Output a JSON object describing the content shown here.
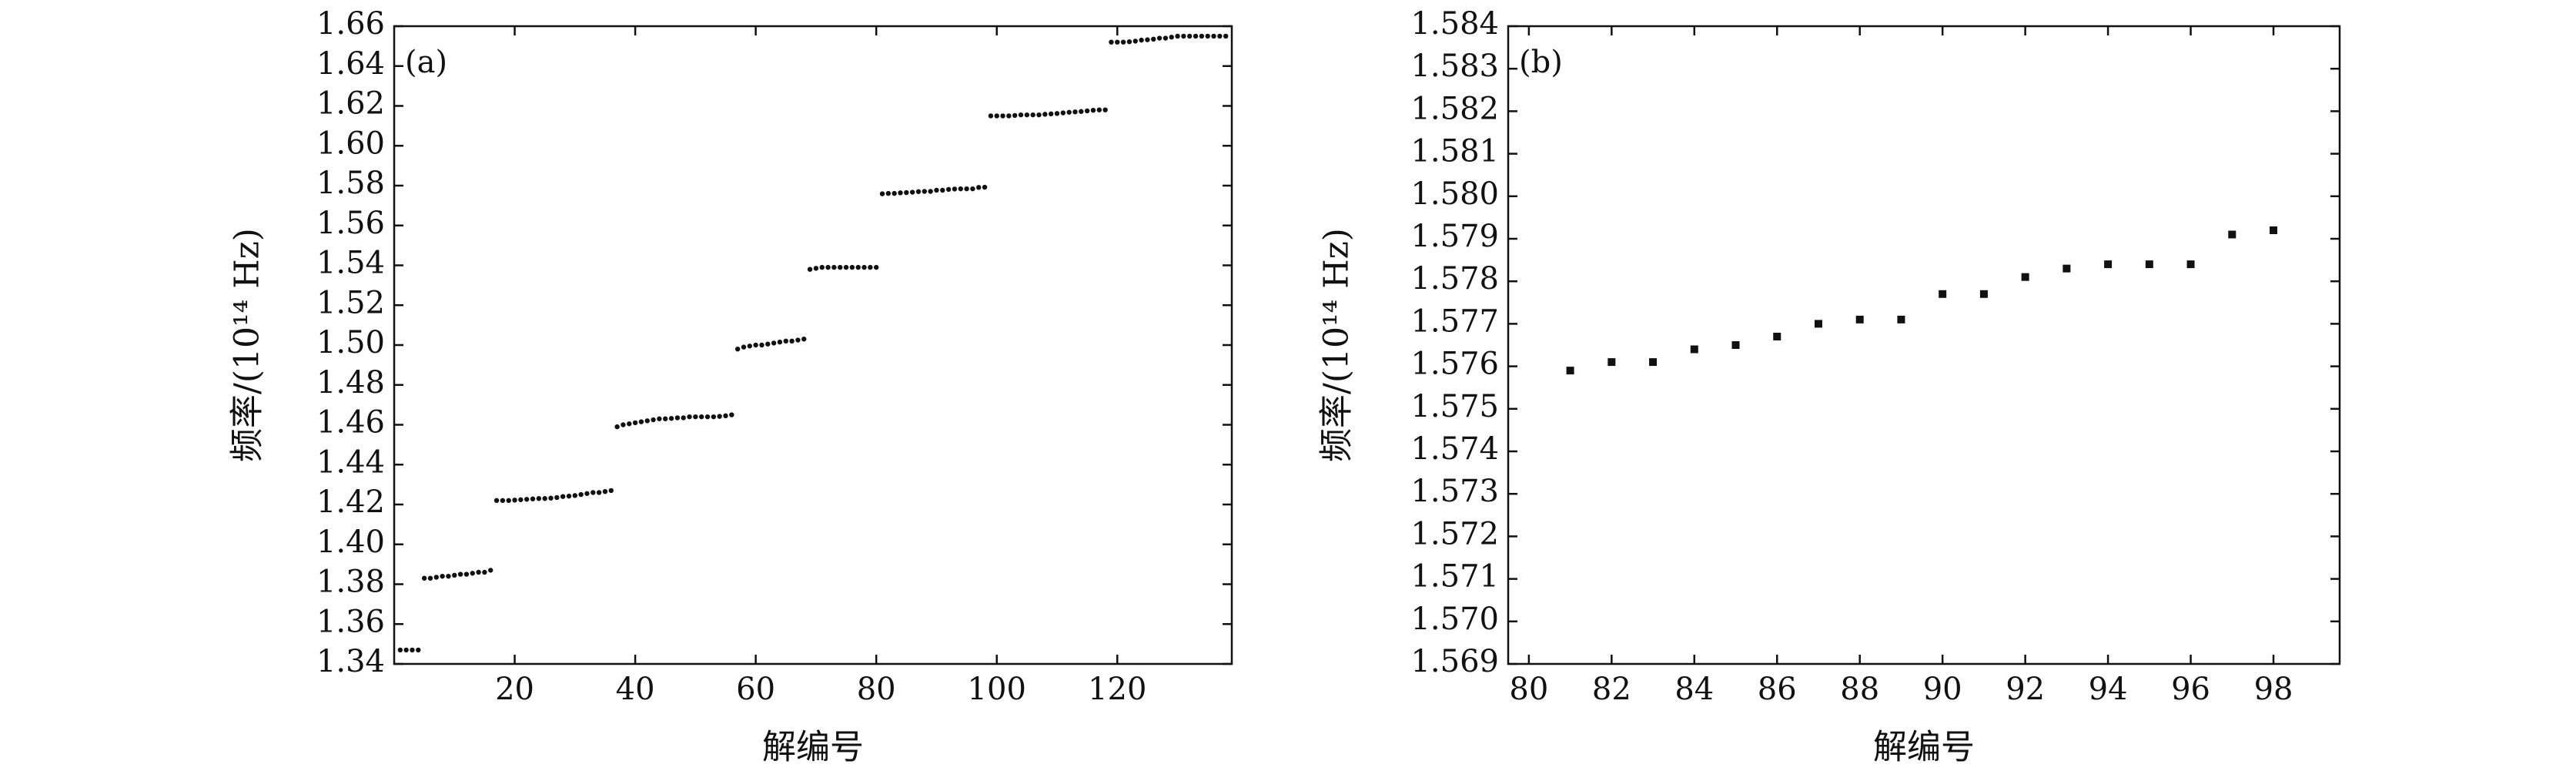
{
  "chart_data": [
    {
      "type": "scatter",
      "annotation": "(a)",
      "xlabel": "解编号",
      "ylabel": "频率/(10¹⁴ Hz)",
      "color": "#111111",
      "marker": "circle",
      "xlim": [
        0,
        139
      ],
      "xticks": [
        20,
        40,
        60,
        80,
        100,
        120
      ],
      "ylim": [
        1.34,
        1.66
      ],
      "yticks": [
        {
          "value": 1.34,
          "label": "1.34"
        },
        {
          "value": 1.36,
          "label": "1.36"
        },
        {
          "value": 1.38,
          "label": "1.38"
        },
        {
          "value": 1.4,
          "label": "1.40"
        },
        {
          "value": 1.42,
          "label": "1.42"
        },
        {
          "value": 1.44,
          "label": "1.44"
        },
        {
          "value": 1.46,
          "label": "1.46"
        },
        {
          "value": 1.48,
          "label": "1.48"
        },
        {
          "value": 1.5,
          "label": "1.50"
        },
        {
          "value": 1.52,
          "label": "1.52"
        },
        {
          "value": 1.54,
          "label": "1.54"
        },
        {
          "value": 1.56,
          "label": "1.56"
        },
        {
          "value": 1.58,
          "label": "1.58"
        },
        {
          "value": 1.6,
          "label": "1.60"
        },
        {
          "value": 1.62,
          "label": "1.62"
        },
        {
          "value": 1.64,
          "label": "1.64"
        },
        {
          "value": 1.66,
          "label": "1.66"
        }
      ],
      "x": [
        1,
        2,
        3,
        4,
        5,
        6,
        7,
        8,
        9,
        10,
        11,
        12,
        13,
        14,
        15,
        16,
        17,
        18,
        19,
        20,
        21,
        22,
        23,
        24,
        25,
        26,
        27,
        28,
        29,
        30,
        31,
        32,
        33,
        34,
        35,
        36,
        37,
        38,
        39,
        40,
        41,
        42,
        43,
        44,
        45,
        46,
        47,
        48,
        49,
        50,
        51,
        52,
        53,
        54,
        55,
        56,
        57,
        58,
        59,
        60,
        61,
        62,
        63,
        64,
        65,
        66,
        67,
        68,
        69,
        70,
        71,
        72,
        73,
        74,
        75,
        76,
        77,
        78,
        79,
        80,
        81,
        82,
        83,
        84,
        85,
        86,
        87,
        88,
        89,
        90,
        91,
        92,
        93,
        94,
        95,
        96,
        97,
        98,
        99,
        100,
        101,
        102,
        103,
        104,
        105,
        106,
        107,
        108,
        109,
        110,
        111,
        112,
        113,
        114,
        115,
        116,
        117,
        118,
        119,
        120,
        121,
        122,
        123,
        124,
        125,
        126,
        127,
        128,
        129,
        130,
        131,
        132,
        133,
        134,
        135,
        136,
        137,
        138
      ],
      "values": [
        1.347,
        1.347,
        1.347,
        1.347,
        1.383,
        1.383,
        1.3835,
        1.384,
        1.384,
        1.3845,
        1.385,
        1.385,
        1.3855,
        1.386,
        1.386,
        1.387,
        1.422,
        1.422,
        1.422,
        1.4222,
        1.4224,
        1.4226,
        1.4228,
        1.423,
        1.423,
        1.4232,
        1.4235,
        1.424,
        1.4242,
        1.4245,
        1.425,
        1.4255,
        1.426,
        1.426,
        1.4265,
        1.427,
        1.459,
        1.46,
        1.4605,
        1.461,
        1.4615,
        1.462,
        1.4625,
        1.463,
        1.463,
        1.4632,
        1.4635,
        1.4635,
        1.464,
        1.464,
        1.464,
        1.464,
        1.464,
        1.4642,
        1.4645,
        1.465,
        1.498,
        1.499,
        1.4995,
        1.5,
        1.5,
        1.5005,
        1.501,
        1.5015,
        1.502,
        1.502,
        1.5025,
        1.503,
        1.538,
        1.5385,
        1.539,
        1.539,
        1.539,
        1.539,
        1.539,
        1.539,
        1.539,
        1.539,
        1.539,
        1.539,
        1.5759,
        1.5761,
        1.5761,
        1.5764,
        1.5765,
        1.5767,
        1.577,
        1.5771,
        1.5771,
        1.5777,
        1.5777,
        1.5781,
        1.5783,
        1.5784,
        1.5784,
        1.5784,
        1.5791,
        1.5792,
        1.615,
        1.615,
        1.615,
        1.615,
        1.6152,
        1.6155,
        1.6155,
        1.6155,
        1.6155,
        1.6158,
        1.616,
        1.6162,
        1.6165,
        1.6168,
        1.617,
        1.6172,
        1.6175,
        1.6178,
        1.618,
        1.618,
        1.652,
        1.652,
        1.652,
        1.6522,
        1.6525,
        1.653,
        1.6532,
        1.6535,
        1.654,
        1.654,
        1.6545,
        1.655,
        1.655,
        1.655,
        1.655,
        1.655,
        1.655,
        1.655,
        1.655,
        1.655
      ]
    },
    {
      "type": "scatter",
      "annotation": "(b)",
      "xlabel": "解编号",
      "ylabel": "频率/(10¹⁴ Hz)",
      "color": "#111111",
      "marker": "square",
      "xlim": [
        79.5,
        99.6
      ],
      "xticks": [
        80,
        82,
        84,
        86,
        88,
        90,
        92,
        94,
        96,
        98
      ],
      "ylim": [
        1.569,
        1.584
      ],
      "yticks": [
        1.569,
        {
          "value": 1.57,
          "label": "1.570"
        },
        1.571,
        1.572,
        1.573,
        1.574,
        1.575,
        1.576,
        1.577,
        1.578,
        1.579,
        {
          "value": 1.58,
          "label": "1.580"
        },
        1.581,
        1.582,
        1.583,
        1.584
      ],
      "x": [
        81,
        82,
        83,
        84,
        85,
        86,
        87,
        88,
        89,
        90,
        91,
        92,
        93,
        94,
        95,
        96,
        97,
        98
      ],
      "values": [
        1.5759,
        1.5761,
        1.5761,
        1.5764,
        1.5765,
        1.5767,
        1.577,
        1.5771,
        1.5771,
        1.5777,
        1.5777,
        1.5781,
        1.5783,
        1.5784,
        1.5784,
        1.5784,
        1.5791,
        1.5792
      ]
    }
  ]
}
